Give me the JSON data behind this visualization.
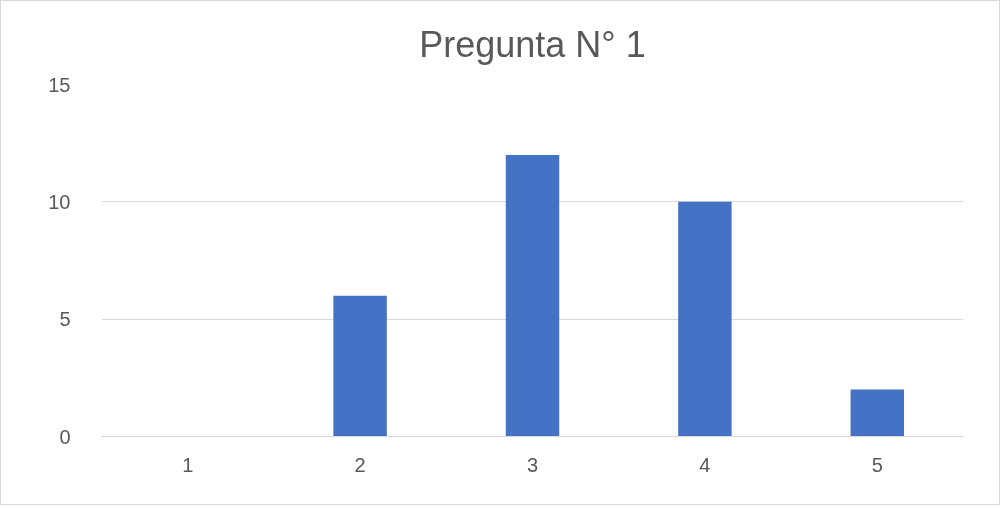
{
  "chart_data": {
    "type": "bar",
    "title": "Pregunta N° 1",
    "categories": [
      "1",
      "2",
      "3",
      "4",
      "5"
    ],
    "values": [
      0,
      6,
      12,
      10,
      2
    ],
    "color": "#4472c4",
    "ylim": [
      0,
      15
    ],
    "yticks": [
      0,
      5,
      10,
      15
    ],
    "grid": "y"
  }
}
